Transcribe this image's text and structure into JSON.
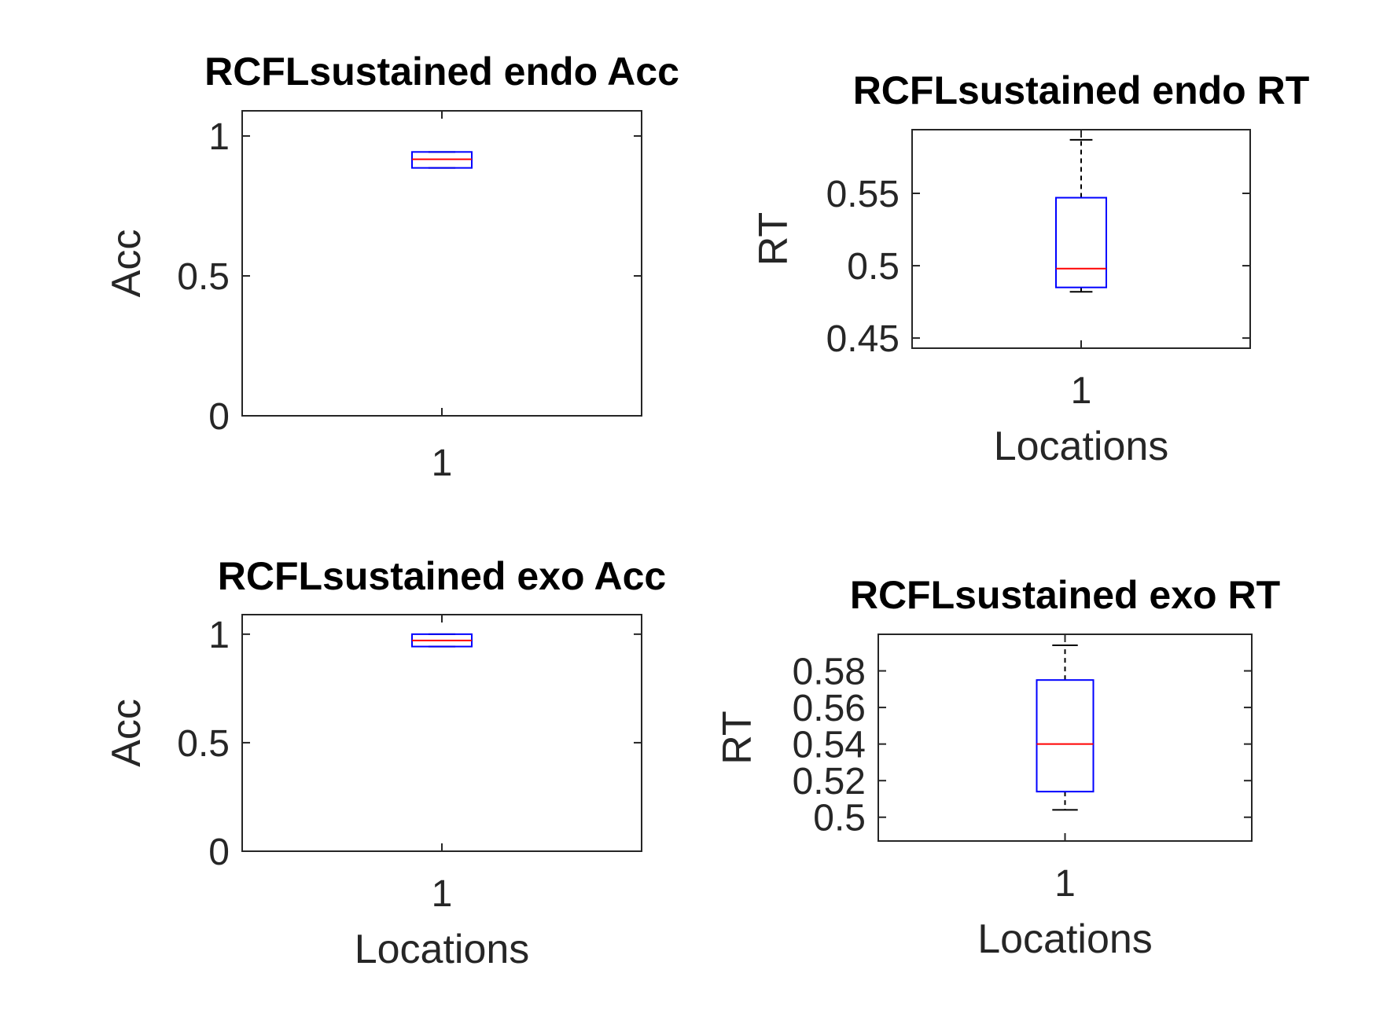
{
  "chart_data": [
    {
      "type": "box",
      "title": "RCFLsustained endo Acc",
      "xlabel": "",
      "ylabel": "Acc",
      "categories": [
        "1"
      ],
      "ylim": [
        0,
        1.09
      ],
      "yticks": [
        0,
        0.5,
        1
      ],
      "ytick_labels": [
        "0",
        "0.5",
        "1"
      ],
      "boxes": [
        {
          "category": "1",
          "whisker_low": 0.886,
          "q1": 0.886,
          "median": 0.917,
          "q3": 0.943,
          "whisker_high": 0.943
        }
      ]
    },
    {
      "type": "box",
      "title": "RCFLsustained endo RT",
      "xlabel": "Locations",
      "ylabel": "RT",
      "categories": [
        "1"
      ],
      "ylim": [
        0.443,
        0.594
      ],
      "yticks": [
        0.45,
        0.5,
        0.55
      ],
      "ytick_labels": [
        "0.45",
        "0.5",
        "0.55"
      ],
      "boxes": [
        {
          "category": "1",
          "whisker_low": 0.482,
          "q1": 0.485,
          "median": 0.498,
          "q3": 0.547,
          "whisker_high": 0.587
        }
      ]
    },
    {
      "type": "box",
      "title": "RCFLsustained exo Acc",
      "xlabel": "Locations",
      "ylabel": "Acc",
      "categories": [
        "1"
      ],
      "ylim": [
        0,
        1.09
      ],
      "yticks": [
        0,
        0.5,
        1
      ],
      "ytick_labels": [
        "0",
        "0.5",
        "1"
      ],
      "boxes": [
        {
          "category": "1",
          "whisker_low": 0.943,
          "q1": 0.943,
          "median": 0.971,
          "q3": 1.0,
          "whisker_high": 1.0
        }
      ]
    },
    {
      "type": "box",
      "title": "RCFLsustained exo RT",
      "xlabel": "Locations",
      "ylabel": "RT",
      "categories": [
        "1"
      ],
      "ylim": [
        0.487,
        0.6
      ],
      "yticks": [
        0.5,
        0.52,
        0.54,
        0.56,
        0.58
      ],
      "ytick_labels": [
        "0.5",
        "0.52",
        "0.54",
        "0.56",
        "0.58"
      ],
      "boxes": [
        {
          "category": "1",
          "whisker_low": 0.504,
          "q1": 0.514,
          "median": 0.54,
          "q3": 0.575,
          "whisker_high": 0.594
        }
      ]
    }
  ],
  "colors": {
    "box": "#0000ff",
    "median": "#ff0000",
    "whisker": "#000000",
    "axes": "#262626",
    "title": "#000000"
  }
}
